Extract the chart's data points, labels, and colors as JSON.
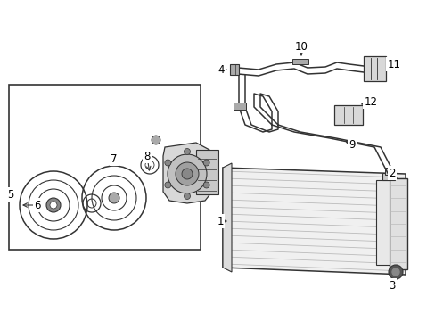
{
  "bg_color": "#ffffff",
  "fig_width": 4.89,
  "fig_height": 3.6,
  "dpi": 100,
  "line_color": "#333333",
  "text_color": "#000000",
  "font_size": 8.5
}
